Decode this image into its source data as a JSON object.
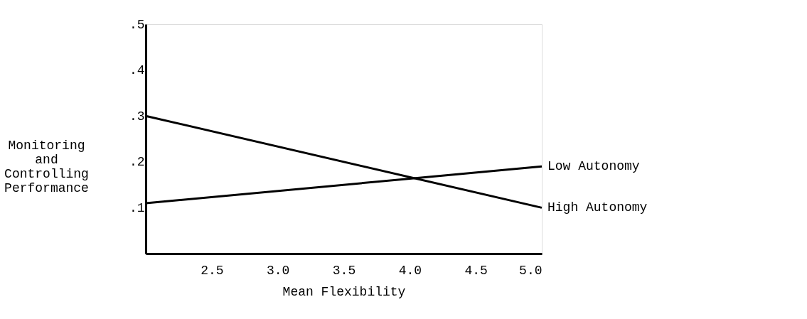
{
  "chart_data": {
    "type": "line",
    "xlabel": "Mean Flexibility",
    "ylabel": "Monitoring and Controlling Performance",
    "x": [
      2.0,
      5.0
    ],
    "series": [
      {
        "name": "Low Autonomy",
        "color": "#000000",
        "values": [
          0.11,
          0.19
        ]
      },
      {
        "name": "High Autonomy",
        "color": "#000000",
        "values": [
          0.3,
          0.1
        ]
      }
    ],
    "xlim": [
      2.0,
      5.0
    ],
    "xticks": [
      {
        "value": 2.5,
        "label": "2.5"
      },
      {
        "value": 3.0,
        "label": "3.0"
      },
      {
        "value": 3.5,
        "label": "3.5"
      },
      {
        "value": 4.0,
        "label": "4.0"
      },
      {
        "value": 4.5,
        "label": "4.5"
      },
      {
        "value": 5.0,
        "label": "5.0"
      }
    ],
    "ylim": [
      0,
      0.5
    ],
    "yticks": [
      {
        "value": 0.1,
        "label": ".1"
      },
      {
        "value": 0.2,
        "label": ".2"
      },
      {
        "value": 0.3,
        "label": ".3"
      },
      {
        "value": 0.4,
        "label": ".4"
      },
      {
        "value": 0.5,
        "label": ".5"
      }
    ],
    "grid": false,
    "legend": false,
    "marker": "none",
    "line_style": "solid"
  }
}
